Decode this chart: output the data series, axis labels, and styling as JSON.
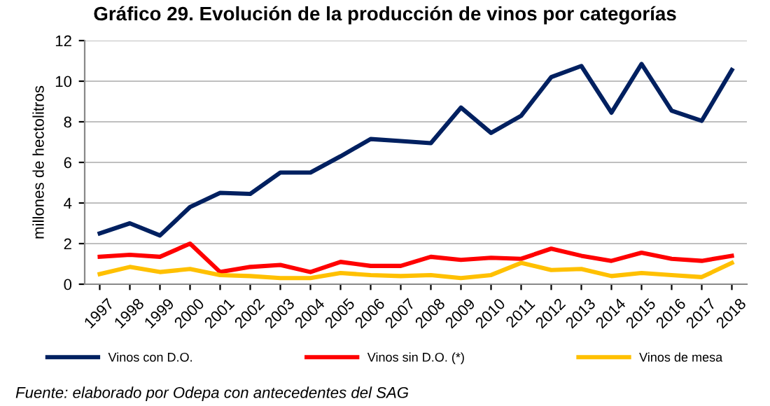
{
  "chart_data": {
    "type": "line",
    "title": "Gráfico 29. Evolución de la producción de vinos por categorías",
    "ylabel": "millones de hectolitros",
    "categories": [
      "1997",
      "1998",
      "1999",
      "2000",
      "2001",
      "2002",
      "2003",
      "2004",
      "2005",
      "2006",
      "2007",
      "2008",
      "2009",
      "2010",
      "2011",
      "2012",
      "2013",
      "2014",
      "2015",
      "2016",
      "2017",
      "2018"
    ],
    "series": [
      {
        "name": "Vinos con D.O.",
        "color": "#002060",
        "values": [
          2.5,
          3.0,
          2.4,
          3.8,
          4.5,
          4.45,
          5.5,
          5.5,
          6.3,
          7.15,
          7.05,
          6.95,
          8.7,
          7.45,
          8.3,
          10.2,
          10.75,
          8.45,
          10.85,
          8.55,
          8.05,
          10.55
        ]
      },
      {
        "name": "Vinos sin D.O. (*)",
        "color": "#ff0000",
        "values": [
          1.35,
          1.45,
          1.35,
          2.0,
          0.6,
          0.85,
          0.95,
          0.6,
          1.1,
          0.9,
          0.9,
          1.35,
          1.2,
          1.3,
          1.25,
          1.75,
          1.4,
          1.15,
          1.55,
          1.25,
          1.15,
          1.4
        ]
      },
      {
        "name": "Vinos de mesa",
        "color": "#ffc000",
        "values": [
          0.5,
          0.85,
          0.6,
          0.75,
          0.45,
          0.4,
          0.3,
          0.3,
          0.55,
          0.45,
          0.4,
          0.45,
          0.3,
          0.45,
          1.05,
          0.7,
          0.75,
          0.4,
          0.55,
          0.45,
          0.35,
          1.05
        ]
      }
    ],
    "ylim": [
      0,
      12
    ],
    "yticks": [
      0,
      2,
      4,
      6,
      8,
      10,
      12
    ],
    "grid": "y",
    "legend": "bottom",
    "annotations": [
      "Fuente: elaborado por Odepa con antecedentes del SAG"
    ]
  }
}
